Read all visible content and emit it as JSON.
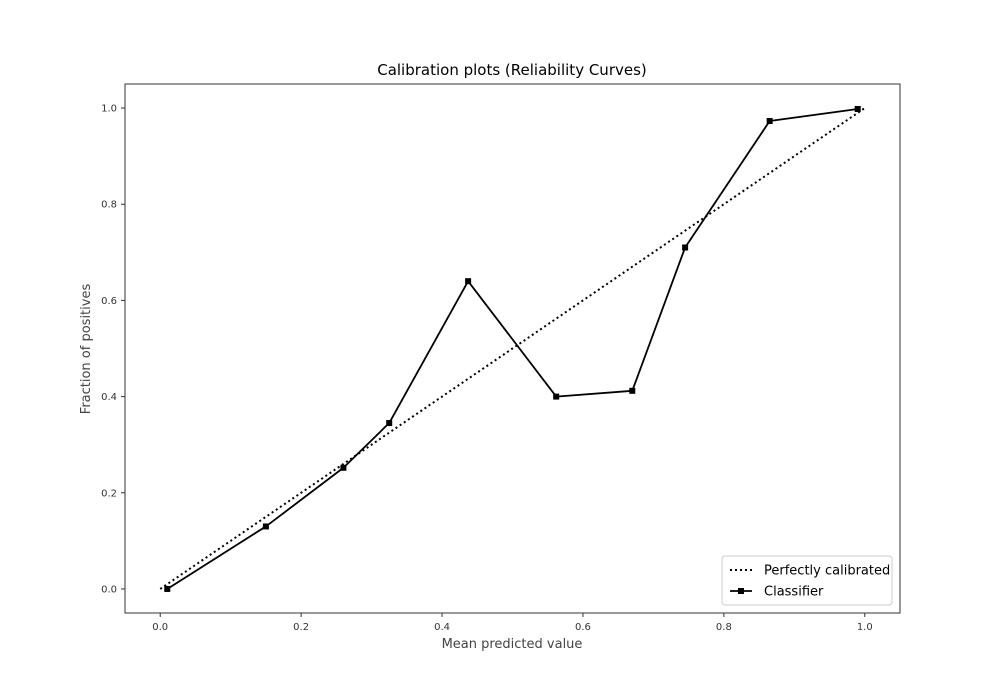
{
  "chart_data": {
    "type": "line",
    "title": "Calibration plots (Reliability Curves)",
    "xlabel": "Mean predicted value",
    "ylabel": "Fraction of positives",
    "xlim": [
      -0.05,
      1.05
    ],
    "ylim": [
      -0.05,
      1.05
    ],
    "xticks": [
      "0.0",
      "0.2",
      "0.4",
      "0.6",
      "0.8",
      "1.0"
    ],
    "yticks": [
      "0.0",
      "0.2",
      "0.4",
      "0.6",
      "0.8",
      "1.0"
    ],
    "grid": false,
    "legend_position": "lower-right",
    "series": [
      {
        "name": "Perfectly calibrated",
        "style": "dotted",
        "color": "#000000",
        "marker": "none",
        "x": [
          0.0,
          1.0
        ],
        "y": [
          0.0,
          1.0
        ]
      },
      {
        "name": "Classifier",
        "style": "solid",
        "color": "#000000",
        "marker": "square",
        "x": [
          0.01,
          0.15,
          0.26,
          0.325,
          0.437,
          0.562,
          0.67,
          0.745,
          0.865,
          0.99
        ],
        "y": [
          0.0,
          0.13,
          0.252,
          0.345,
          0.64,
          0.4,
          0.412,
          0.71,
          0.973,
          0.998
        ]
      }
    ]
  }
}
